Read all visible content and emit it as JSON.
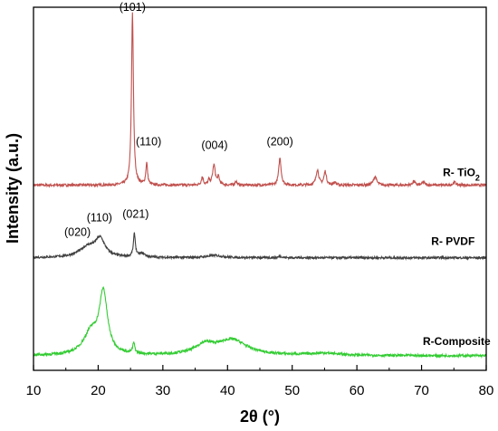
{
  "chart_data": {
    "type": "line",
    "xlabel": "2θ (°)",
    "ylabel": "Intensity (a.u.)",
    "xlim": [
      10,
      80
    ],
    "xticks": [
      10,
      20,
      30,
      40,
      50,
      60,
      70,
      80
    ],
    "ylim": [
      0,
      100
    ],
    "grid": false,
    "series": [
      {
        "name": "R- TiO",
        "name_sub": "2",
        "color": "#c0504d",
        "baseline": 51,
        "noise": 0.35,
        "peaks": [
          {
            "x": 25.3,
            "h": 47.5,
            "w": 0.18
          },
          {
            "x": 27.5,
            "h": 6.0,
            "w": 0.16
          },
          {
            "x": 36.1,
            "h": 2.2,
            "w": 0.18
          },
          {
            "x": 37.1,
            "h": 1.2,
            "w": 0.15
          },
          {
            "x": 37.9,
            "h": 5.5,
            "w": 0.25
          },
          {
            "x": 38.6,
            "h": 2.0,
            "w": 0.18
          },
          {
            "x": 41.3,
            "h": 1.1,
            "w": 0.18
          },
          {
            "x": 48.1,
            "h": 7.5,
            "w": 0.22
          },
          {
            "x": 53.9,
            "h": 4.2,
            "w": 0.25
          },
          {
            "x": 55.1,
            "h": 3.7,
            "w": 0.22
          },
          {
            "x": 56.6,
            "h": 0.8,
            "w": 0.2
          },
          {
            "x": 62.8,
            "h": 2.3,
            "w": 0.3
          },
          {
            "x": 68.8,
            "h": 1.0,
            "w": 0.25
          },
          {
            "x": 70.3,
            "h": 0.8,
            "w": 0.25
          },
          {
            "x": 75.1,
            "h": 0.8,
            "w": 0.25
          }
        ]
      },
      {
        "name": "R- PVDF",
        "color": "#404040",
        "baseline": 31,
        "noise": 0.3,
        "peaks": [
          {
            "x": 18.4,
            "h": 2.8,
            "w": 1.6
          },
          {
            "x": 20.3,
            "h": 4.7,
            "w": 0.9
          },
          {
            "x": 25.6,
            "h": 6.3,
            "w": 0.18
          },
          {
            "x": 26.8,
            "h": 1.0,
            "w": 0.6
          },
          {
            "x": 38.0,
            "h": 0.6,
            "w": 1.5
          },
          {
            "x": 48.2,
            "h": 0.4,
            "w": 0.3
          }
        ]
      },
      {
        "name": "R-Composite",
        "color": "#33cc33",
        "baseline": 4,
        "noise": 0.35,
        "peaks": [
          {
            "x": 18.9,
            "h": 6.0,
            "w": 1.4
          },
          {
            "x": 20.8,
            "h": 16.5,
            "w": 0.75
          },
          {
            "x": 25.5,
            "h": 2.8,
            "w": 0.2
          },
          {
            "x": 36.5,
            "h": 2.6,
            "w": 1.8
          },
          {
            "x": 40.7,
            "h": 4.2,
            "w": 2.8
          },
          {
            "x": 55.0,
            "h": 0.6,
            "w": 3.0
          }
        ]
      }
    ],
    "annotations": [
      {
        "text": "(101)",
        "x": 25.3,
        "y": 99
      },
      {
        "text": "(110)",
        "x": 27.8,
        "y": 62
      },
      {
        "text": "(004)",
        "x": 38.0,
        "y": 61
      },
      {
        "text": "(200)",
        "x": 48.1,
        "y": 62
      },
      {
        "text": "(020)",
        "x": 16.8,
        "y": 37
      },
      {
        "text": "(110)",
        "x": 20.2,
        "y": 41
      },
      {
        "text": "(021)",
        "x": 25.8,
        "y": 42
      }
    ]
  }
}
